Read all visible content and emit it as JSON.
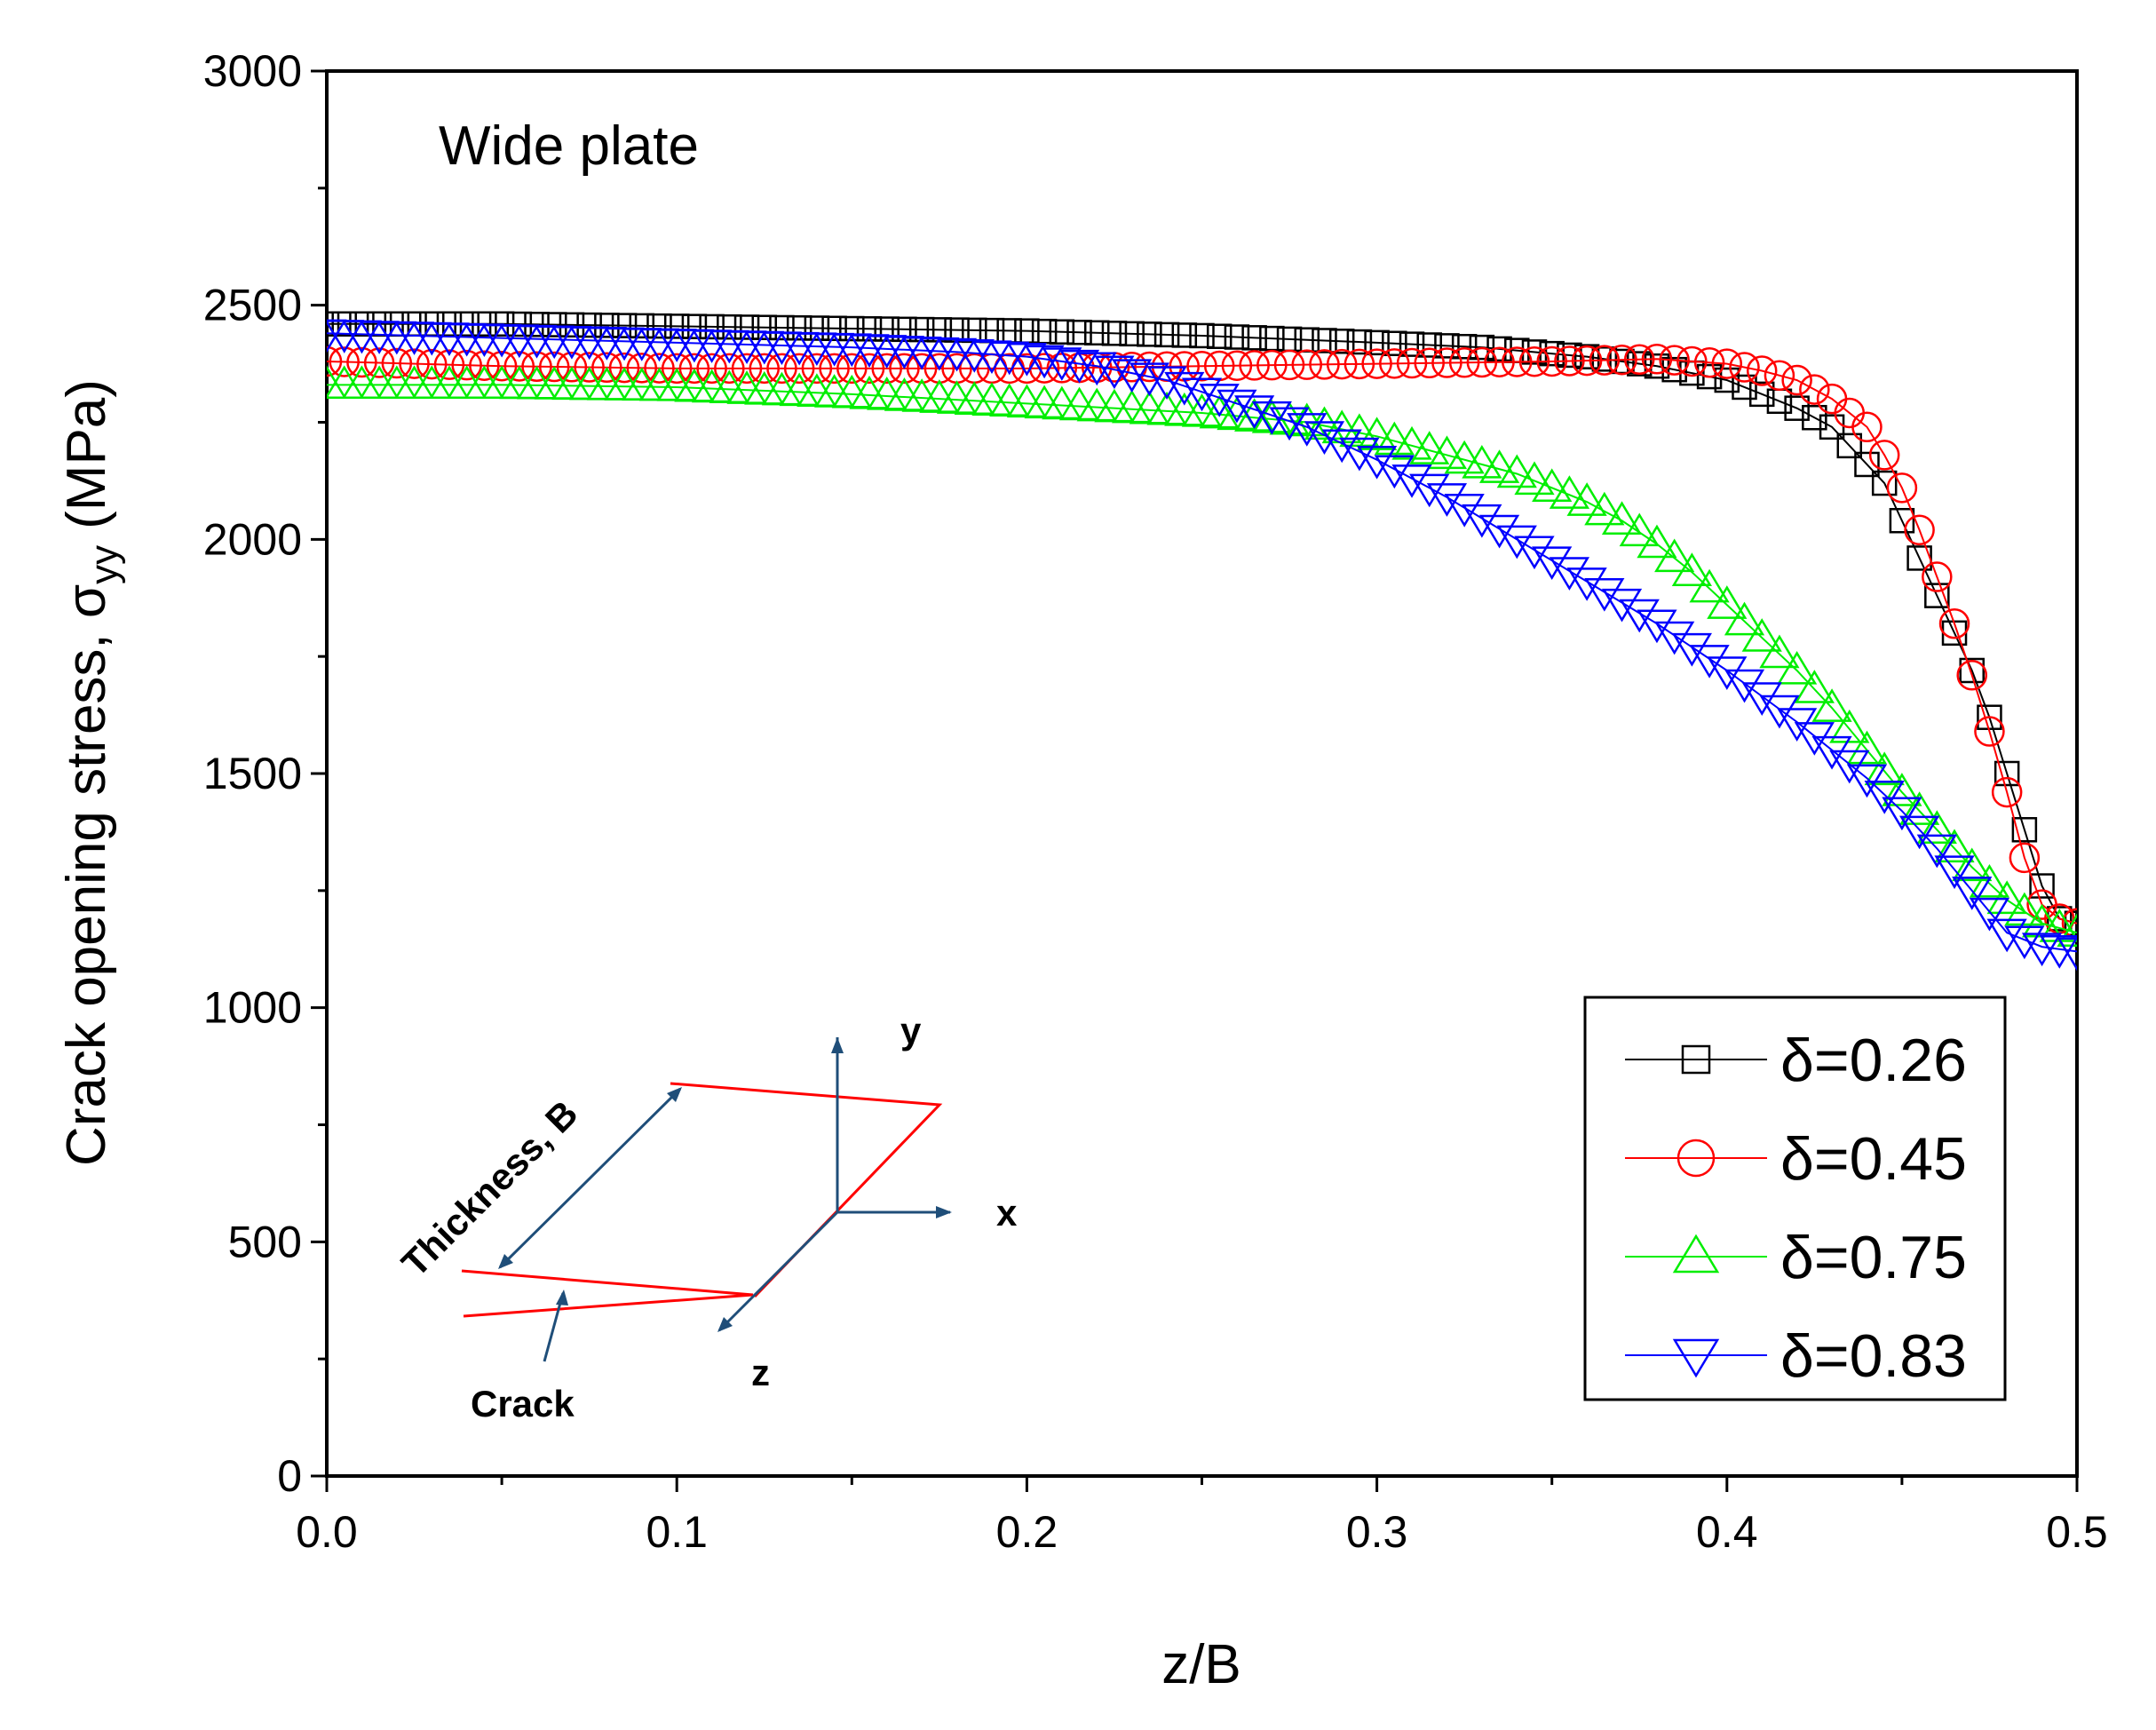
{
  "chart_data": {
    "type": "scatter",
    "annotation": "Wide plate",
    "xlabel": "z/B",
    "ylabel": {
      "main": "Crack opening stress, σ",
      "subscript": "yy",
      "unit": "(MPa)"
    },
    "xlim": [
      0,
      0.5
    ],
    "ylim": [
      0,
      3000
    ],
    "x_ticks": [
      0.0,
      0.1,
      0.2,
      0.3,
      0.4,
      0.5
    ],
    "x_tick_labels": [
      "0.0",
      "0.1",
      "0.2",
      "0.3",
      "0.4",
      "0.5"
    ],
    "y_ticks": [
      0,
      500,
      1000,
      1500,
      2000,
      2500,
      3000
    ],
    "y_tick_labels": [
      "0",
      "500",
      "1000",
      "1500",
      "2000",
      "2500",
      "3000"
    ],
    "legend_position": "bottom-right",
    "series": [
      {
        "name": "δ=0.26",
        "color": "#000000",
        "marker": "square",
        "x": [
          0.0,
          0.05,
          0.1,
          0.15,
          0.2,
          0.25,
          0.3,
          0.33,
          0.36,
          0.38,
          0.4,
          0.41,
          0.42,
          0.43,
          0.435,
          0.44,
          0.445,
          0.45,
          0.455,
          0.46,
          0.465,
          0.47,
          0.475,
          0.48,
          0.485,
          0.49,
          0.495,
          0.5
        ],
        "y": [
          2460,
          2460,
          2455,
          2450,
          2445,
          2435,
          2420,
          2410,
          2390,
          2370,
          2340,
          2310,
          2280,
          2240,
          2200,
          2160,
          2120,
          2040,
          1960,
          1880,
          1800,
          1720,
          1620,
          1500,
          1380,
          1260,
          1190,
          1180
        ]
      },
      {
        "name": "δ=0.45",
        "color": "#ff0000",
        "marker": "circle",
        "x": [
          0.0,
          0.05,
          0.1,
          0.15,
          0.2,
          0.25,
          0.3,
          0.35,
          0.38,
          0.4,
          0.41,
          0.42,
          0.43,
          0.435,
          0.44,
          0.445,
          0.45,
          0.455,
          0.46,
          0.465,
          0.47,
          0.475,
          0.48,
          0.485,
          0.49,
          0.495,
          0.5
        ],
        "y": [
          2380,
          2370,
          2365,
          2365,
          2365,
          2370,
          2375,
          2380,
          2385,
          2375,
          2360,
          2340,
          2300,
          2270,
          2240,
          2180,
          2110,
          2020,
          1920,
          1820,
          1710,
          1590,
          1460,
          1320,
          1220,
          1190,
          1180
        ]
      },
      {
        "name": "δ=0.75",
        "color": "#00ee00",
        "marker": "triangle-up",
        "x": [
          0.0,
          0.05,
          0.1,
          0.15,
          0.2,
          0.25,
          0.28,
          0.3,
          0.32,
          0.34,
          0.35,
          0.36,
          0.37,
          0.38,
          0.39,
          0.4,
          0.41,
          0.42,
          0.43,
          0.44,
          0.45,
          0.46,
          0.47,
          0.48,
          0.49,
          0.5
        ],
        "y": [
          2330,
          2330,
          2325,
          2310,
          2290,
          2270,
          2250,
          2220,
          2180,
          2140,
          2110,
          2080,
          2040,
          1990,
          1930,
          1860,
          1790,
          1720,
          1640,
          1550,
          1460,
          1380,
          1300,
          1230,
          1180,
          1160
        ]
      },
      {
        "name": "δ=0.83",
        "color": "#0000ff",
        "marker": "triangle-down",
        "x": [
          0.0,
          0.05,
          0.1,
          0.15,
          0.18,
          0.2,
          0.22,
          0.24,
          0.26,
          0.28,
          0.3,
          0.32,
          0.34,
          0.36,
          0.38,
          0.4,
          0.42,
          0.44,
          0.45,
          0.46,
          0.47,
          0.48,
          0.49,
          0.5
        ],
        "y": [
          2440,
          2430,
          2420,
          2410,
          2400,
          2390,
          2370,
          2340,
          2290,
          2240,
          2170,
          2090,
          2000,
          1910,
          1820,
          1720,
          1610,
          1490,
          1420,
          1340,
          1250,
          1160,
          1130,
          1120
        ]
      }
    ]
  },
  "inset": {
    "thickness_label": "Thickness, B",
    "crack_label": "Crack",
    "axis_x_label": "x",
    "axis_y_label": "y",
    "axis_z_label": "z",
    "axis_color": "#1f4e79",
    "crack_color": "#ff0000"
  }
}
